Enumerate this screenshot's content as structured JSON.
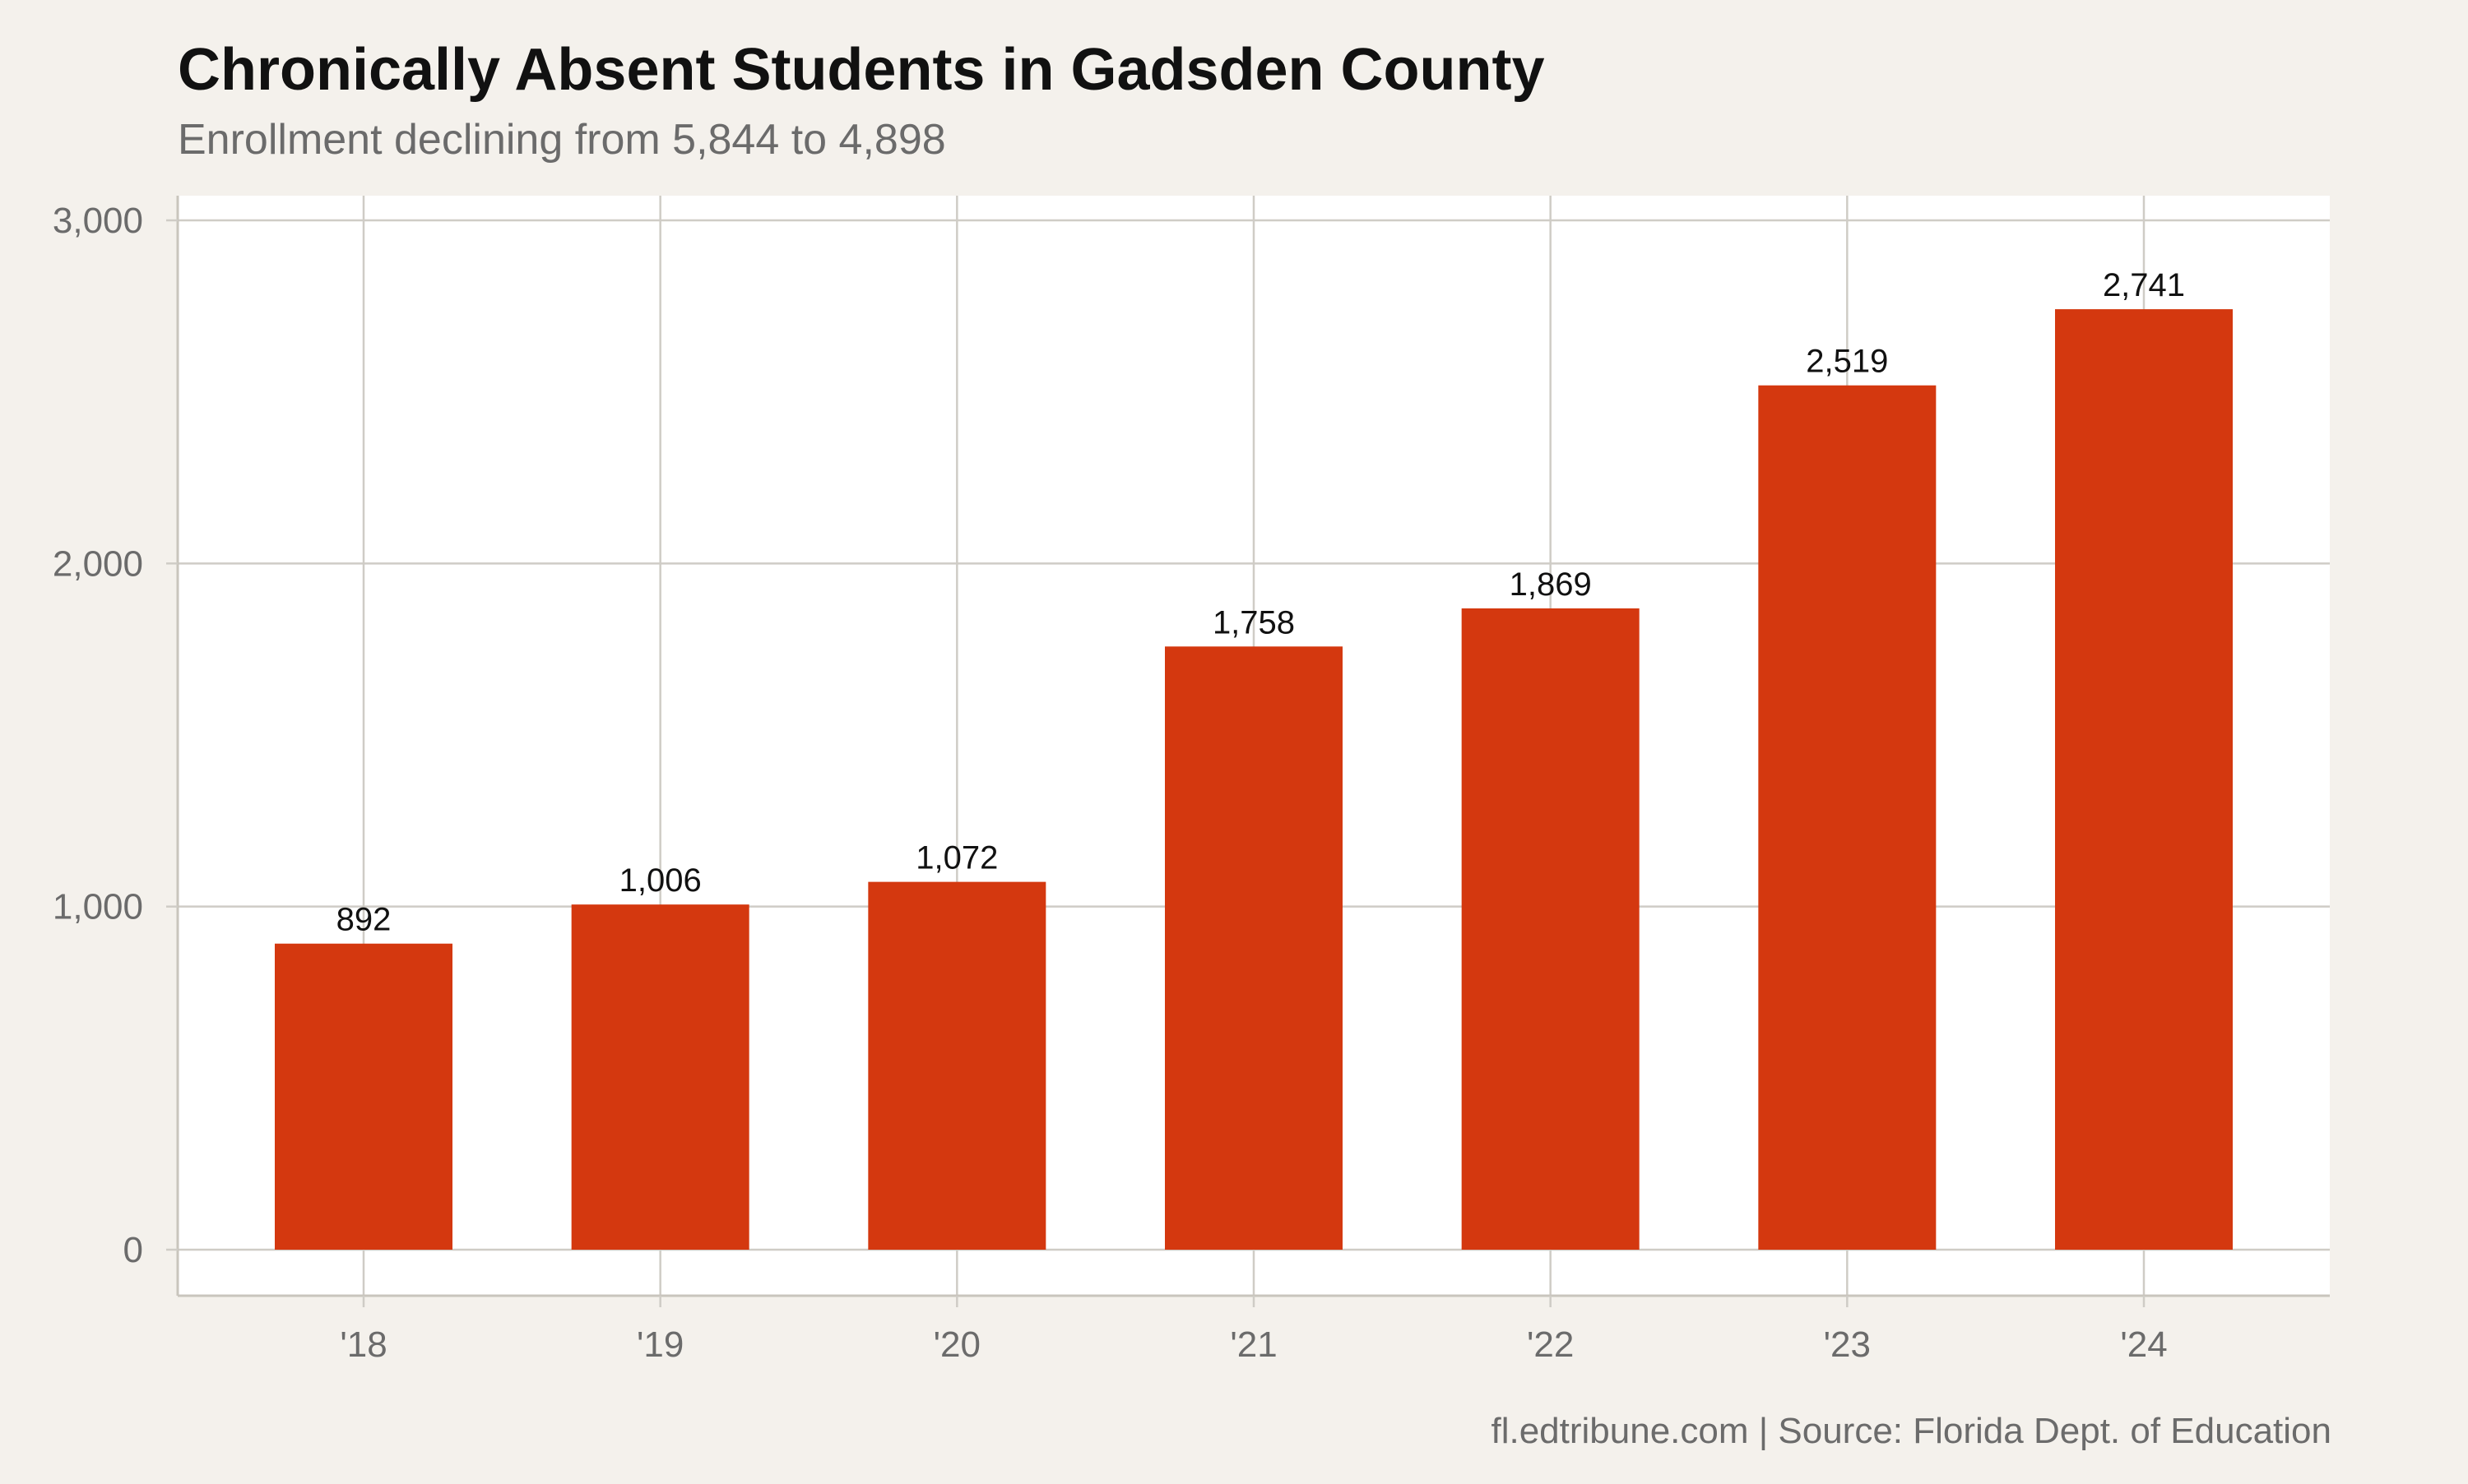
{
  "chart_data": {
    "type": "bar",
    "title": "Chronically Absent Students in Gadsden County",
    "subtitle": "Enrollment declining from 5,844 to 4,898",
    "caption": "fl.edtribune.com | Source: Florida Dept. of Education",
    "xlabel": "",
    "ylabel": "",
    "categories": [
      "'18",
      "'19",
      "'20",
      "'21",
      "'22",
      "'23",
      "'24"
    ],
    "values": [
      892,
      1006,
      1072,
      1758,
      1869,
      2519,
      2741
    ],
    "value_labels": [
      "892",
      "1,006",
      "1,072",
      "1,758",
      "1,869",
      "2,519",
      "2,741"
    ],
    "ylim": [
      0,
      3000
    ],
    "yticks": [
      0,
      1000,
      2000,
      3000
    ],
    "ytick_labels": [
      "0",
      "1,000",
      "2,000",
      "3,000"
    ],
    "grid": true,
    "legend": "none",
    "colors": {
      "bar": "#d4380f",
      "grid": "#cfccc6",
      "panel": "#ffffff",
      "background": "#f4f1ec",
      "tick_text": "#6b6b6b"
    }
  }
}
